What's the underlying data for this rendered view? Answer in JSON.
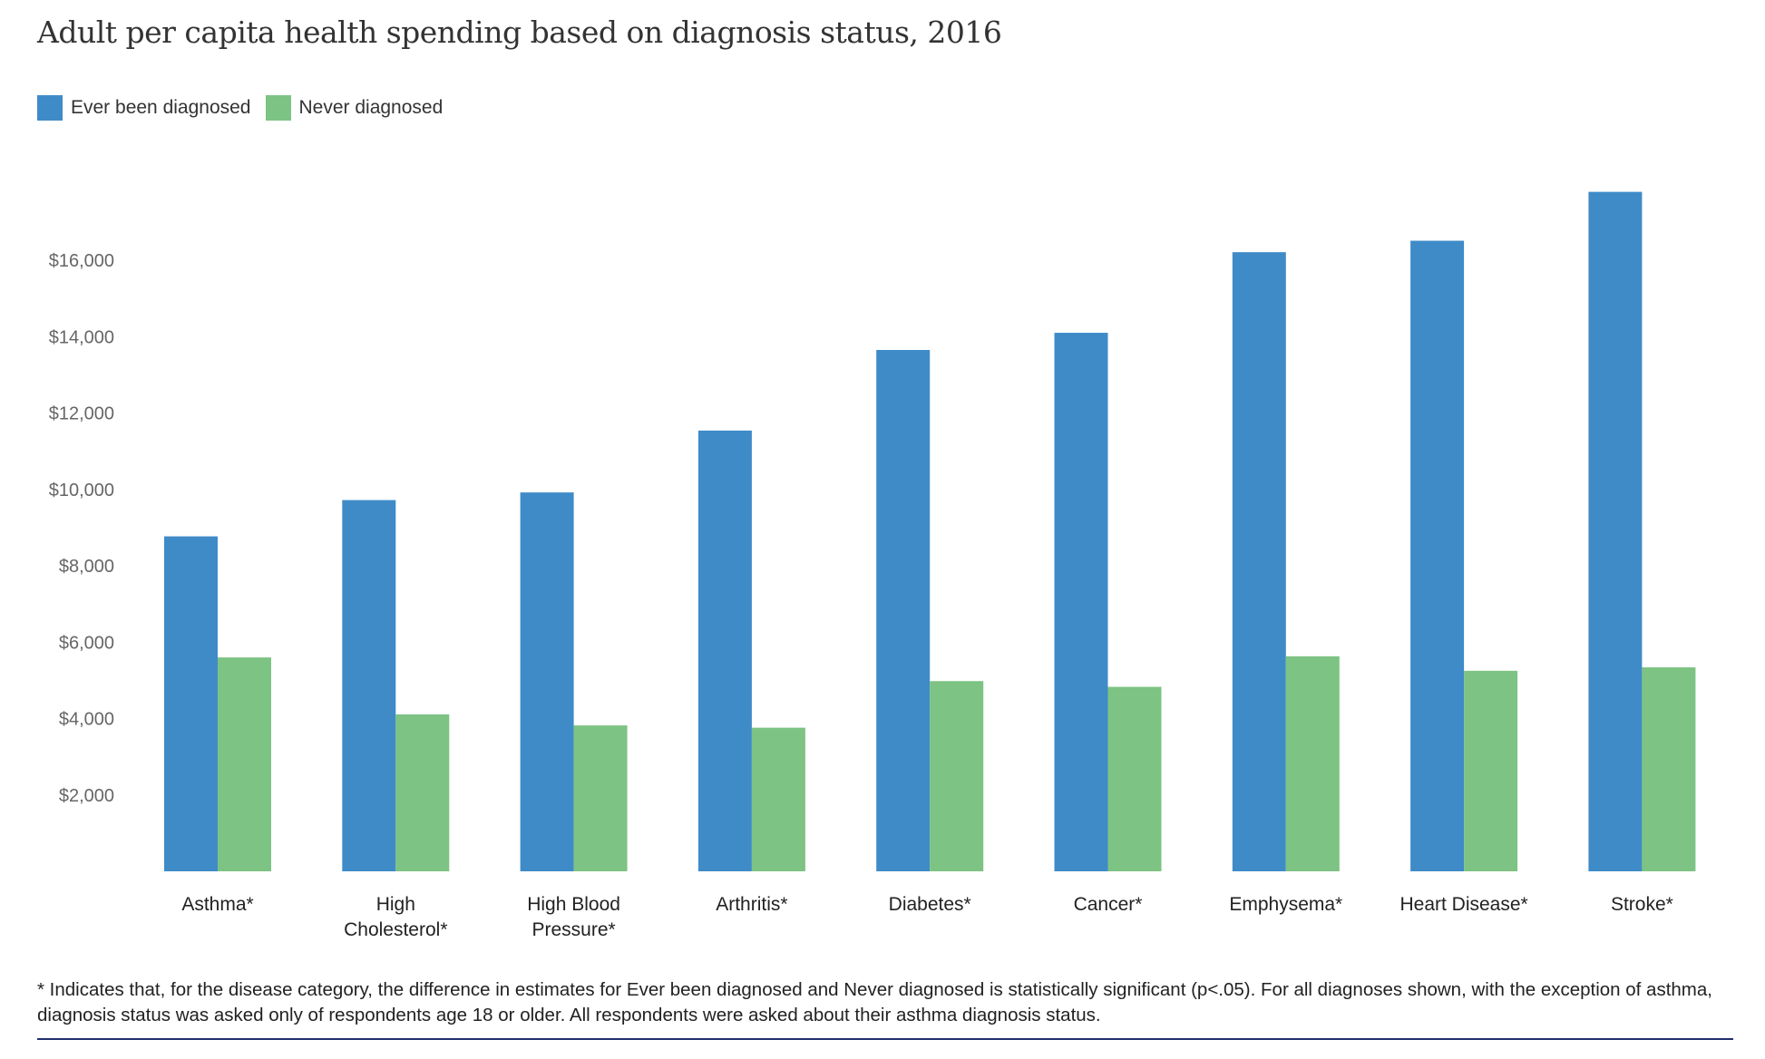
{
  "chart_data": {
    "type": "bar",
    "title": "Adult per capita health spending based on diagnosis status, 2016",
    "categories": [
      [
        "Asthma*"
      ],
      [
        "High",
        "Cholesterol*"
      ],
      [
        "High Blood",
        "Pressure*"
      ],
      [
        "Arthritis*"
      ],
      [
        "Diabetes*"
      ],
      [
        "Cancer*"
      ],
      [
        "Emphysema*"
      ],
      [
        "Heart Disease*"
      ],
      [
        "Stroke*"
      ]
    ],
    "series": [
      {
        "name": "Ever been diagnosed",
        "color": "#3f8bc8",
        "values": [
          8770,
          9720,
          9920,
          11540,
          13650,
          14100,
          16210,
          16510,
          17790
        ]
      },
      {
        "name": "Never diagnosed",
        "color": "#7dc383",
        "values": [
          5600,
          4110,
          3820,
          3760,
          4980,
          4830,
          5630,
          5250,
          5340
        ]
      }
    ],
    "y_ticks": [
      2000,
      4000,
      6000,
      8000,
      10000,
      12000,
      14000,
      16000
    ],
    "y_tick_labels": [
      "$2,000",
      "$4,000",
      "$6,000",
      "$8,000",
      "$10,000",
      "$12,000",
      "$14,000",
      "$16,000"
    ],
    "ylim": [
      0,
      18000
    ],
    "grid": false,
    "legend_position": "top-left",
    "xlabel": "",
    "ylabel": "",
    "footnote": "* Indicates that, for the disease category, the difference in estimates for Ever been diagnosed and Never diagnosed is statistically significant (p<.05). For all diagnoses shown, with the exception of asthma, diagnosis status was asked only of respondents age 18 or older. All respondents were asked about their asthma diagnosis status.",
    "rule_color": "#1f2f6b"
  }
}
